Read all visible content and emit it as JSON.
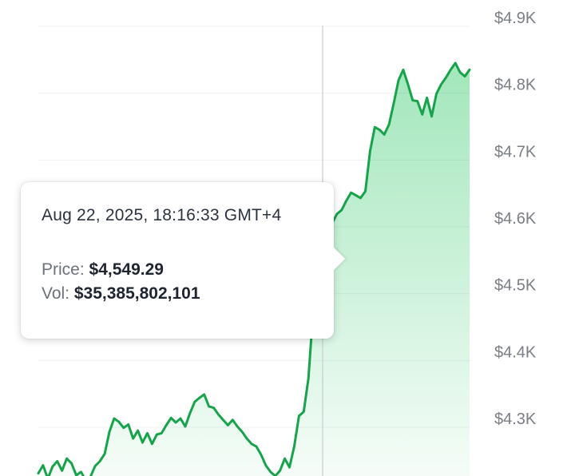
{
  "chart_data": {
    "type": "area",
    "y_axis": {
      "ticks": [
        "$4.3K",
        "$4.4K",
        "$4.5K",
        "$4.6K",
        "$4.7K",
        "$4.8K",
        "$4.9K"
      ],
      "tick_values": [
        4300,
        4400,
        4500,
        4600,
        4700,
        4800,
        4900
      ],
      "position": "right",
      "range": [
        4215,
        4905
      ]
    },
    "grid": true,
    "line_color": "#16a34a",
    "fill_color": "#22c55e",
    "series": [
      {
        "values": [
          4218,
          4230,
          4210,
          4228,
          4236,
          4222,
          4240,
          4233,
          4215,
          4220,
          4208,
          4213,
          4229,
          4236,
          4247,
          4280,
          4300,
          4295,
          4286,
          4291,
          4270,
          4282,
          4264,
          4278,
          4262,
          4276,
          4278,
          4290,
          4301,
          4294,
          4300,
          4288,
          4308,
          4325,
          4331,
          4336,
          4318,
          4316,
          4306,
          4298,
          4290,
          4298,
          4288,
          4280,
          4270,
          4262,
          4258,
          4246,
          4230,
          4220,
          4214,
          4222,
          4240,
          4227,
          4258,
          4304,
          4310,
          4360,
          4462,
          4520,
          4549,
          4572,
          4592,
          4606,
          4612,
          4626,
          4638,
          4634,
          4630,
          4640,
          4700,
          4736,
          4732,
          4725,
          4740,
          4772,
          4806,
          4822,
          4800,
          4776,
          4775,
          4755,
          4780,
          4752,
          4786,
          4800,
          4810,
          4822,
          4832,
          4818,
          4812,
          4822
        ]
      }
    ],
    "crosshair_index": 60,
    "tooltip": {
      "date": "Aug 22, 2025, 18:16:33 GMT+4",
      "price_label": "Price:",
      "price_value": "$4,549.29",
      "vol_label": "Vol:",
      "vol_value": "$35,385,802,101"
    }
  }
}
